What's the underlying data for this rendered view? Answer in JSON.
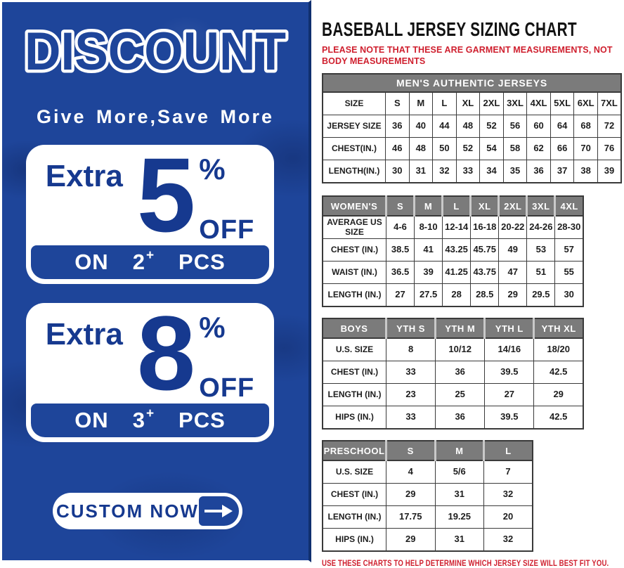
{
  "colors": {
    "panel_blue": "#1e459a",
    "navy_text": "#16398f",
    "red_note": "#cf1f2e",
    "table_header_gray": "#7b7b7b",
    "border_dark": "#3a3a3a"
  },
  "left_panel": {
    "discount_title": "DISCOUNT",
    "tagline": "Give More,Save More",
    "offers": [
      {
        "extra_label": "Extra",
        "percent_value": "5",
        "percent_sign": "%",
        "off_label": "OFF",
        "on_label": "ON",
        "quantity": "2",
        "plus_sign": "+",
        "pcs_label": "PCS"
      },
      {
        "extra_label": "Extra",
        "percent_value": "8",
        "percent_sign": "%",
        "off_label": "OFF",
        "on_label": "ON",
        "quantity": "3",
        "plus_sign": "+",
        "pcs_label": "PCS"
      }
    ],
    "custom_button": {
      "label": "CUSTOM NOW",
      "arrow_icon": "right-arrow"
    }
  },
  "right_panel": {
    "title": "BASEBALL JERSEY SIZING CHART",
    "note_top": "PLEASE NOTE THAT THESE ARE GARMENT MEASUREMENTS, NOT BODY MEASUREMENTS",
    "note_bottom": "USE THESE CHARTS TO HELP DETERMINE WHICH JERSEY SIZE WILL BEST FIT YOU.",
    "tables": [
      {
        "id": "mens",
        "title": "MEN'S AUTHENTIC JERSEYS",
        "header": null,
        "rows": [
          [
            "SIZE",
            "S",
            "M",
            "L",
            "XL",
            "2XL",
            "3XL",
            "4XL",
            "5XL",
            "6XL",
            "7XL"
          ],
          [
            "JERSEY SIZE",
            "36",
            "40",
            "44",
            "48",
            "52",
            "56",
            "60",
            "64",
            "68",
            "72"
          ],
          [
            "CHEST(IN.)",
            "46",
            "48",
            "50",
            "52",
            "54",
            "58",
            "62",
            "66",
            "70",
            "76"
          ],
          [
            "LENGTH(IN.)",
            "30",
            "31",
            "32",
            "33",
            "34",
            "35",
            "36",
            "37",
            "38",
            "39"
          ]
        ]
      },
      {
        "id": "womens",
        "title": null,
        "header": [
          "WOMEN'S",
          "S",
          "M",
          "L",
          "XL",
          "2XL",
          "3XL",
          "4XL"
        ],
        "rows": [
          [
            "AVERAGE US SIZE",
            "4-6",
            "8-10",
            "12-14",
            "16-18",
            "20-22",
            "24-26",
            "28-30"
          ],
          [
            "CHEST (IN.)",
            "38.5",
            "41",
            "43.25",
            "45.75",
            "49",
            "53",
            "57"
          ],
          [
            "WAIST (IN.)",
            "36.5",
            "39",
            "41.25",
            "43.75",
            "47",
            "51",
            "55"
          ],
          [
            "LENGTH (IN.)",
            "27",
            "27.5",
            "28",
            "28.5",
            "29",
            "29.5",
            "30"
          ]
        ]
      },
      {
        "id": "boys",
        "title": null,
        "header": [
          "BOYS",
          "YTH S",
          "YTH M",
          "YTH L",
          "YTH XL"
        ],
        "rows": [
          [
            "U.S. SIZE",
            "8",
            "10/12",
            "14/16",
            "18/20"
          ],
          [
            "CHEST (IN.)",
            "33",
            "36",
            "39.5",
            "42.5"
          ],
          [
            "LENGTH (IN.)",
            "23",
            "25",
            "27",
            "29"
          ],
          [
            "HIPS (IN.)",
            "33",
            "36",
            "39.5",
            "42.5"
          ]
        ]
      },
      {
        "id": "preschool",
        "title": null,
        "header": [
          "PRESCHOOL",
          "S",
          "M",
          "L"
        ],
        "rows": [
          [
            "U.S. SIZE",
            "4",
            "5/6",
            "7"
          ],
          [
            "CHEST (IN.)",
            "29",
            "31",
            "32"
          ],
          [
            "LENGTH (IN.)",
            "17.75",
            "19.25",
            "20"
          ],
          [
            "HIPS (IN.)",
            "29",
            "31",
            "32"
          ]
        ]
      }
    ]
  }
}
